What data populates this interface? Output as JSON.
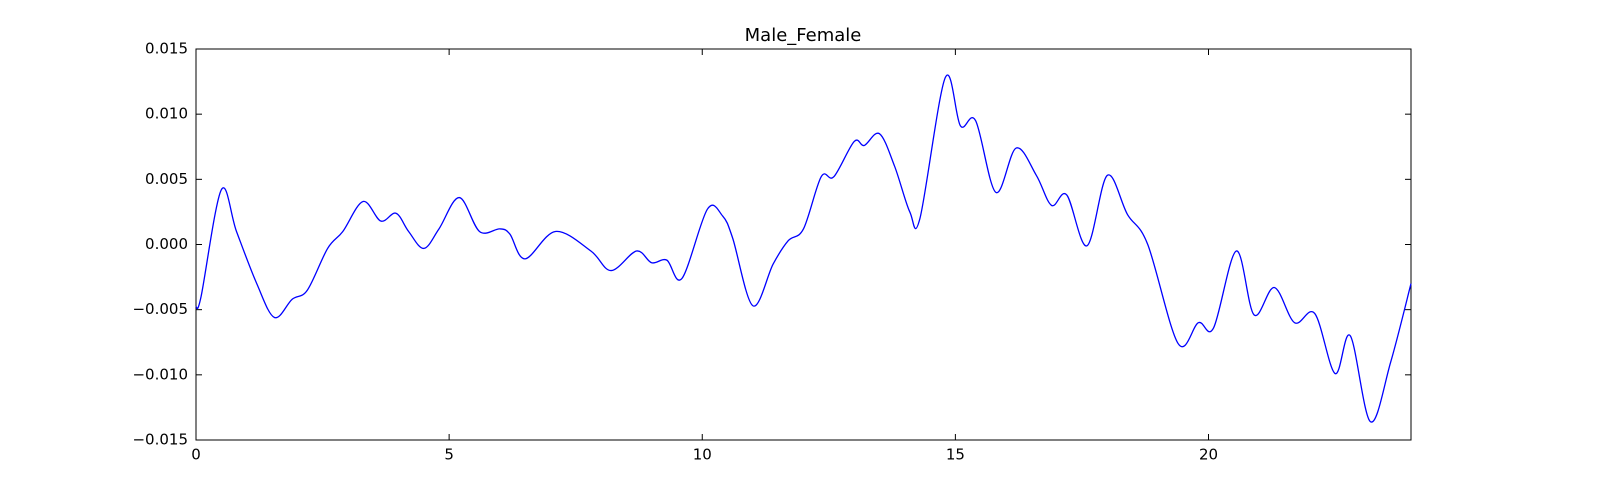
{
  "chart_data": {
    "type": "line",
    "title": "Male_Female",
    "x": [
      0,
      0.1,
      0.5,
      0.8,
      1.2,
      1.55,
      1.9,
      2.2,
      2.6,
      2.9,
      3.3,
      3.65,
      3.95,
      4.2,
      4.5,
      4.8,
      5.2,
      5.6,
      6.0,
      6.2,
      6.5,
      7.1,
      7.8,
      8.2,
      8.7,
      9.0,
      9.3,
      9.6,
      10.1,
      10.4,
      10.6,
      11.0,
      11.4,
      11.7,
      12.0,
      12.35,
      12.6,
      13.0,
      13.2,
      13.5,
      13.8,
      14.1,
      14.3,
      14.8,
      15.1,
      15.4,
      15.8,
      16.2,
      16.6,
      16.9,
      17.2,
      17.6,
      18.0,
      18.4,
      18.8,
      19.4,
      19.8,
      20.1,
      20.55,
      20.9,
      21.3,
      21.7,
      22.1,
      22.5,
      22.8,
      23.2,
      23.6,
      24.0
    ],
    "series": [
      {
        "color": "#0000ff",
        "values": [
          -0.0048,
          -0.004,
          0.0042,
          0.001,
          -0.003,
          -0.0056,
          -0.0042,
          -0.0035,
          -0.0003,
          0.001,
          0.0033,
          0.0018,
          0.0024,
          0.001,
          -0.0003,
          0.0012,
          0.0036,
          0.001,
          0.0012,
          0.0008,
          -0.0011,
          0.001,
          -0.0005,
          -0.002,
          -0.0005,
          -0.0014,
          -0.0012,
          -0.0026,
          0.0027,
          0.0022,
          0.0005,
          -0.0047,
          -0.0015,
          0.0003,
          0.0012,
          0.0052,
          0.0052,
          0.0079,
          0.0076,
          0.0085,
          0.006,
          0.0025,
          0.002,
          0.0128,
          0.0091,
          0.0095,
          0.004,
          0.0074,
          0.0053,
          0.003,
          0.0038,
          -0.0001,
          0.0053,
          0.0023,
          0.0,
          -0.0076,
          -0.006,
          -0.0064,
          -0.0005,
          -0.0054,
          -0.0033,
          -0.006,
          -0.0053,
          -0.0099,
          -0.007,
          -0.0136,
          -0.009,
          -0.003
        ]
      }
    ],
    "xlim": [
      0,
      24
    ],
    "xticks": [
      0,
      5,
      10,
      15,
      20
    ],
    "ylim": [
      -0.015,
      0.015
    ],
    "yticks": [
      {
        "value": -0.015,
        "label": "−0.015"
      },
      {
        "value": -0.01,
        "label": "−0.010"
      },
      {
        "value": -0.005,
        "label": "−0.005"
      },
      {
        "value": 0,
        "label": "0.000"
      },
      {
        "value": 0.005,
        "label": "0.005"
      },
      {
        "value": 0.01,
        "label": "0.010"
      },
      {
        "value": 0.015,
        "label": "0.015"
      }
    ]
  }
}
